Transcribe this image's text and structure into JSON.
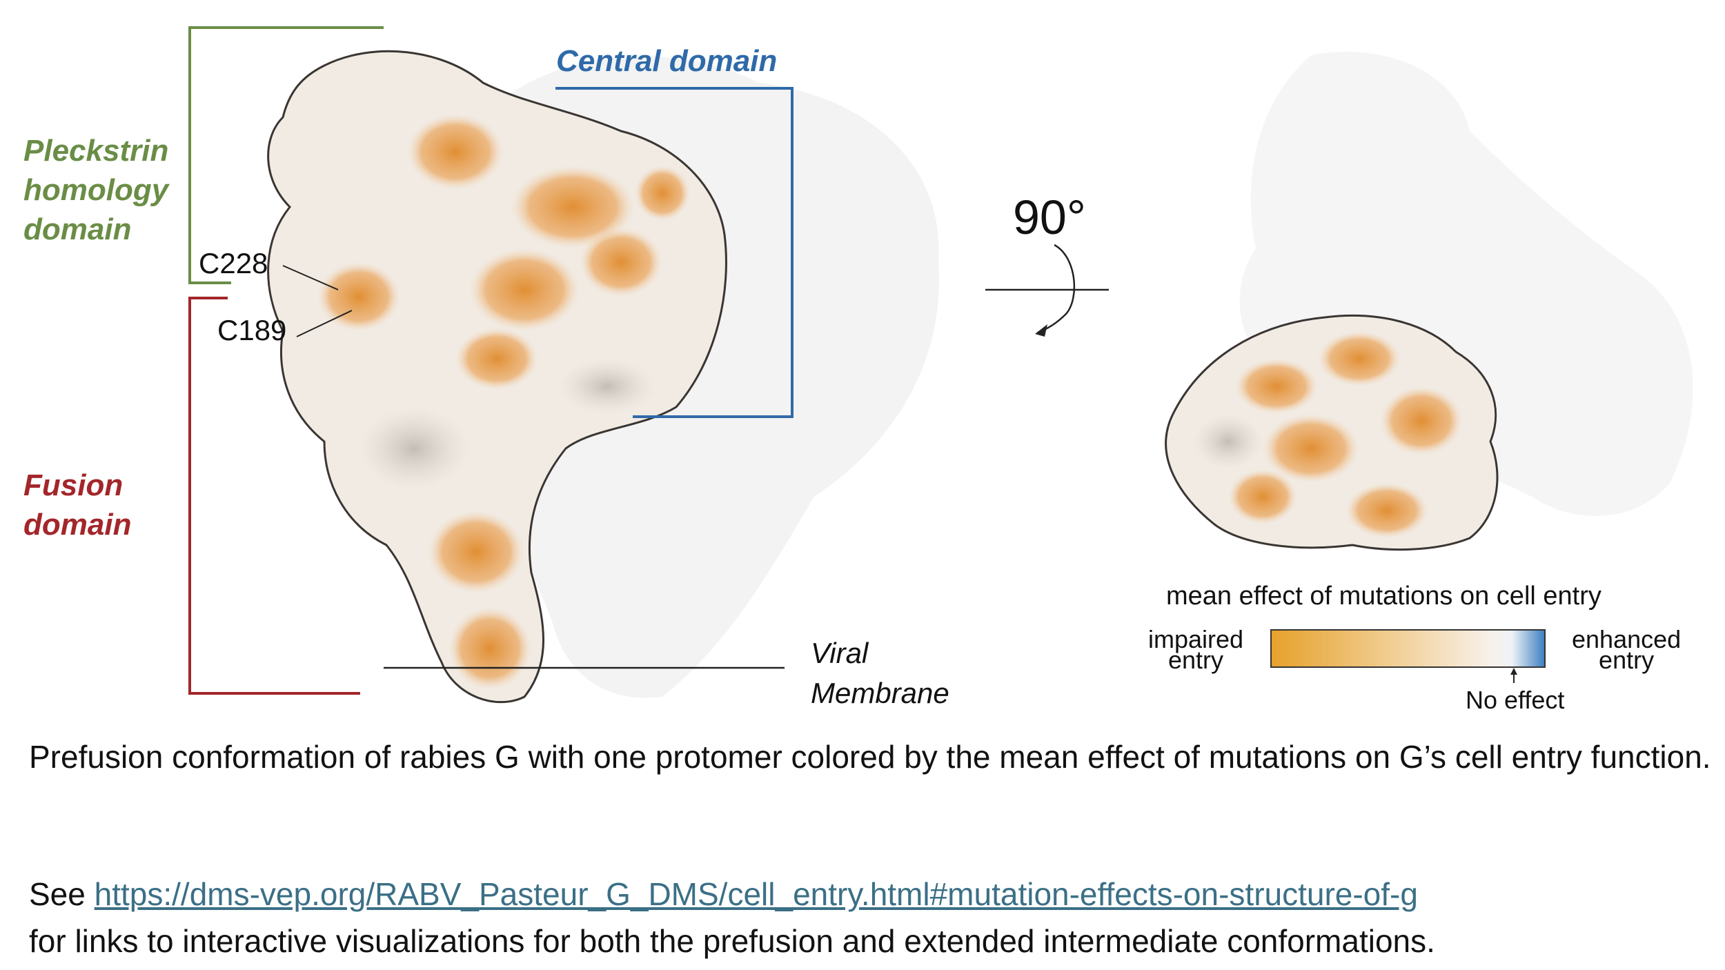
{
  "figure": {
    "domains": {
      "pleckstrin": {
        "lines": [
          "Pleckstrin",
          "homology",
          "domain"
        ],
        "color": "#6a8d46"
      },
      "central": {
        "text": "Central domain",
        "color": "#2f6aa8"
      },
      "fusion": {
        "lines": [
          "Fusion",
          "domain"
        ],
        "color": "#a3262a"
      }
    },
    "residues": {
      "c228": "C228",
      "c189": "C189"
    },
    "membrane": {
      "lines": [
        "Viral",
        "Membrane"
      ]
    },
    "rotation": {
      "label": "90°"
    },
    "legend": {
      "title": "mean effect of mutations on cell entry",
      "left_lines": [
        "impaired",
        "entry"
      ],
      "right_lines": [
        "enhanced",
        "entry"
      ],
      "marker": "No effect",
      "colors": {
        "impaired": "#e6a12b",
        "neutral": "#f6efe6",
        "enhanced": "#3a7ec0"
      }
    }
  },
  "caption": {
    "line1": "Prefusion conformation of rabies G with one protomer colored by the mean effect of mutations on G’s cell entry function.",
    "see": "See ",
    "url": "https://dms-vep.org/RABV_Pasteur_G_DMS/cell_entry.html#mutation-effects-on-structure-of-g",
    "line3": "for links to interactive visualizations for both the prefusion and extended intermediate conformations."
  }
}
